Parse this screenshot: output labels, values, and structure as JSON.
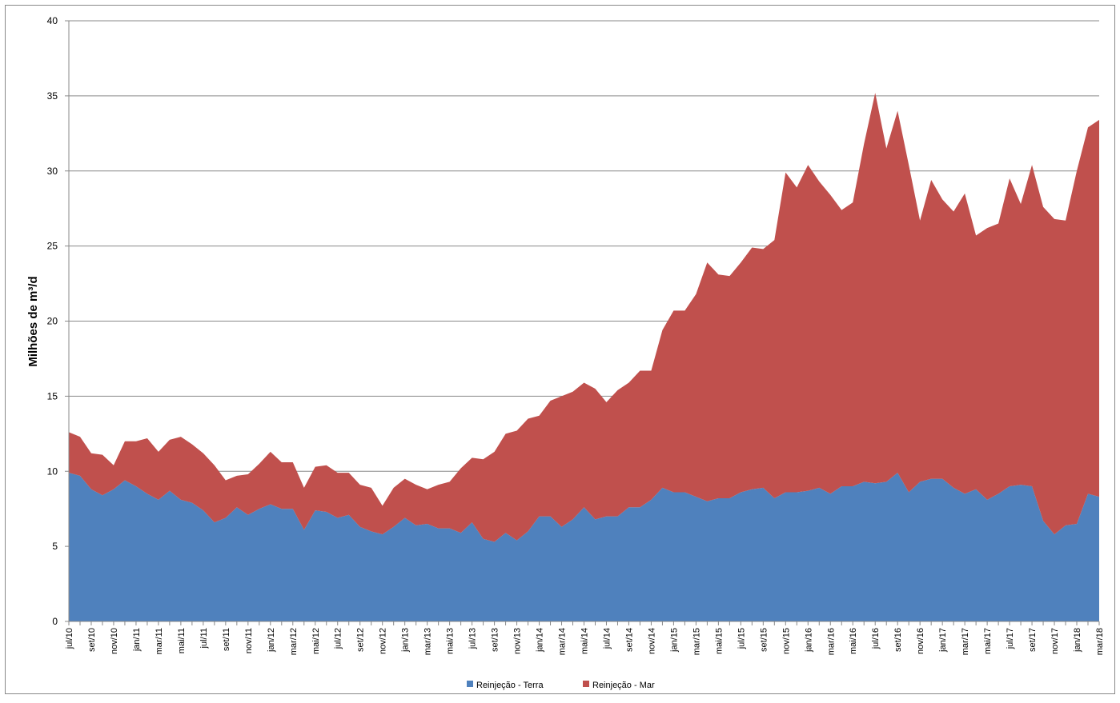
{
  "chart_data": {
    "type": "stacked_area",
    "y_label": "Milhões de m³/d",
    "categories": [
      "jul/10",
      null,
      "set/10",
      null,
      "nov/10",
      null,
      "jan/11",
      null,
      "mar/11",
      null,
      "mai/11",
      null,
      "jul/11",
      null,
      "set/11",
      null,
      "nov/11",
      null,
      "jan/12",
      null,
      "mar/12",
      null,
      "mai/12",
      null,
      "jul/12",
      null,
      "set/12",
      null,
      "nov/12",
      null,
      "jan/13",
      null,
      "mar/13",
      null,
      "mai/13",
      null,
      "jul/13",
      null,
      "set/13",
      null,
      "nov/13",
      null,
      "jan/14",
      null,
      "mar/14",
      null,
      "mai/14",
      null,
      "jul/14",
      null,
      "set/14",
      null,
      "nov/14",
      null,
      "jan/15",
      null,
      "mar/15",
      null,
      "mai/15",
      null,
      "jul/15",
      null,
      "set/15",
      null,
      "nov/15",
      null,
      "jan/16",
      null,
      "mar/16",
      null,
      "mai/16",
      null,
      "jul/16",
      null,
      "set/16",
      null,
      "nov/16",
      null,
      "jan/17",
      null,
      "mar/17",
      null,
      "mai/17",
      null,
      "jul/17",
      null,
      "set/17",
      null,
      "nov/17",
      null,
      "jan/18",
      null,
      "mar/18"
    ],
    "series": [
      {
        "name": "Reinjeção - Terra",
        "color": "#4f81bd",
        "values": [
          9.9,
          9.7,
          8.8,
          8.4,
          8.8,
          9.4,
          9.0,
          8.5,
          8.1,
          8.7,
          8.1,
          7.9,
          7.4,
          6.6,
          6.9,
          7.6,
          7.1,
          7.5,
          7.8,
          7.5,
          7.5,
          6.1,
          7.4,
          7.3,
          6.9,
          7.1,
          6.3,
          6.0,
          5.8,
          6.3,
          6.9,
          6.4,
          6.5,
          6.2,
          6.2,
          5.9,
          6.6,
          5.5,
          5.3,
          5.9,
          5.4,
          6.0,
          7.0,
          7.0,
          6.3,
          6.8,
          7.6,
          6.8,
          7.0,
          7.0,
          7.6,
          7.6,
          8.1,
          8.9,
          8.6,
          8.6,
          8.3,
          8.0,
          8.2,
          8.2,
          8.6,
          8.8,
          8.9,
          8.2,
          8.6,
          8.6,
          8.7,
          8.9,
          8.5,
          9.0,
          9.0,
          9.3,
          9.2,
          9.3,
          9.9,
          8.6,
          9.3,
          9.5,
          9.5,
          8.9,
          8.5,
          8.8,
          8.1,
          8.5,
          9.0,
          9.1,
          9.0,
          6.7,
          5.8,
          6.4,
          6.5,
          8.5,
          8.3
        ]
      },
      {
        "name": "Reinjeção - Mar",
        "color": "#c0504d",
        "values": [
          2.7,
          2.6,
          2.4,
          2.7,
          1.6,
          2.6,
          3.0,
          3.7,
          3.2,
          3.4,
          4.2,
          3.9,
          3.8,
          3.8,
          2.5,
          2.1,
          2.7,
          3.0,
          3.5,
          3.1,
          3.1,
          2.8,
          2.9,
          3.1,
          3.0,
          2.8,
          2.8,
          2.9,
          1.9,
          2.6,
          2.6,
          2.7,
          2.3,
          2.9,
          3.1,
          4.3,
          4.3,
          5.3,
          6.0,
          6.6,
          7.3,
          7.5,
          6.7,
          7.7,
          8.7,
          8.5,
          8.3,
          8.7,
          7.6,
          8.4,
          8.3,
          9.1,
          8.6,
          10.5,
          12.1,
          12.1,
          13.5,
          15.9,
          14.9,
          14.8,
          15.3,
          16.1,
          15.9,
          17.2,
          21.3,
          20.3,
          21.7,
          20.4,
          19.9,
          18.4,
          18.9,
          22.5,
          26.0,
          22.2,
          24.1,
          21.8,
          17.4,
          19.9,
          18.6,
          18.4,
          20.0,
          16.9,
          18.1,
          18.0,
          20.5,
          18.7,
          21.4,
          20.9,
          21.0,
          20.3,
          23.5,
          24.4,
          25.1
        ]
      }
    ],
    "ylim": [
      0,
      40
    ],
    "yticks": [
      0,
      5,
      10,
      15,
      20,
      25,
      30,
      35,
      40
    ],
    "grid": true,
    "legend": "bottom"
  }
}
